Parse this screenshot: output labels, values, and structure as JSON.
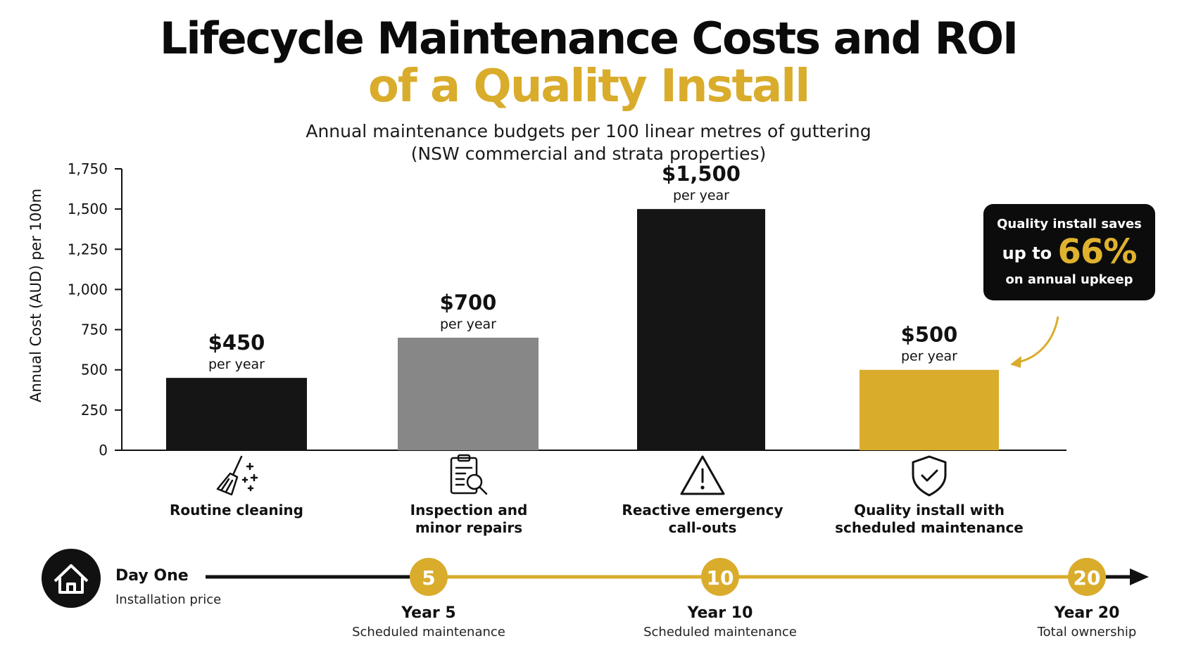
{
  "title_line1": "Lifecycle Maintenance Costs and ROI",
  "title_line2": "of a Quality Install",
  "subtitle_line1": "Annual maintenance budgets per 100 linear metres of guttering",
  "subtitle_line2": "(NSW commercial and strata properties)",
  "colors": {
    "accent": "#d9ac2b",
    "black": "#111111",
    "grey": "#888888"
  },
  "chart_data": {
    "type": "bar",
    "title": "Lifecycle Maintenance Costs and ROI of a Quality Install",
    "ylabel": "Annual Cost (AUD) per 100m",
    "ylim": [
      0,
      1750
    ],
    "yticks": [
      0,
      250,
      500,
      750,
      1000,
      1250,
      1500,
      1750
    ],
    "ytick_labels": [
      "0",
      "250",
      "500",
      "750",
      "1,000",
      "1,250",
      "1,500",
      "1,750"
    ],
    "grid": false,
    "categories": [
      "Routine cleaning",
      "Inspection and minor repairs",
      "Reactive emergency call-outs",
      "Quality install with scheduled maintenance"
    ],
    "values": [
      450,
      700,
      1500,
      500
    ],
    "value_labels": [
      "$450",
      "$700",
      "$1,500",
      "$500"
    ],
    "value_sublabel": "per year",
    "bar_colors": [
      "#151515",
      "#878787",
      "#151515",
      "#d9ac2b"
    ]
  },
  "categories": [
    {
      "line1": "Routine cleaning",
      "line2": "",
      "icon": "broom-icon"
    },
    {
      "line1": "Inspection and",
      "line2": "minor repairs",
      "icon": "clipboard-search-icon"
    },
    {
      "line1": "Reactive emergency",
      "line2": "call-outs",
      "icon": "warning-icon"
    },
    {
      "line1": "Quality install with",
      "line2": "scheduled maintenance",
      "icon": "shield-check-icon"
    }
  ],
  "callout": {
    "line1": "Quality install saves",
    "line2_prefix": "up to",
    "percent": "66%",
    "line3": "on annual upkeep"
  },
  "timeline": {
    "start": {
      "icon": "house-icon",
      "label": "Day One",
      "sub": "Installation price"
    },
    "milestones": [
      {
        "number": "5",
        "label": "Year 5",
        "sub": "Scheduled maintenance"
      },
      {
        "number": "10",
        "label": "Year 10",
        "sub": "Scheduled maintenance"
      },
      {
        "number": "20",
        "label": "Year 20",
        "sub": "Total ownership"
      }
    ]
  }
}
